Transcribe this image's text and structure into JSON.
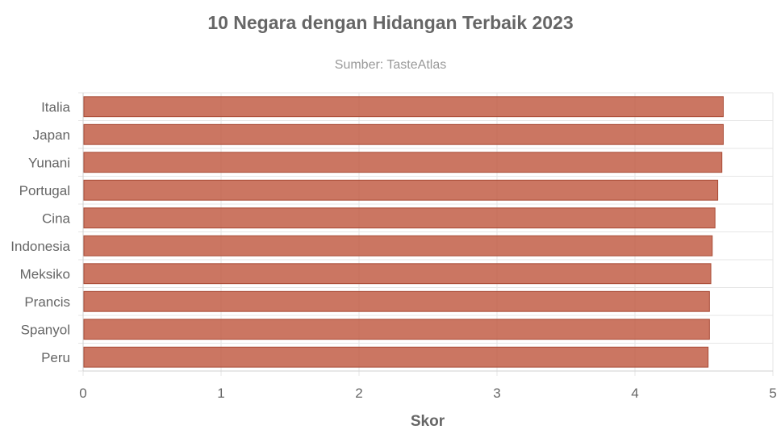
{
  "chart_data": {
    "type": "bar",
    "orientation": "horizontal",
    "title": "10 Negara dengan Hidangan Terbaik 2023",
    "subtitle": "Sumber: TasteAtlas",
    "xlabel": "Skor",
    "ylabel": "",
    "xlim": [
      0,
      5
    ],
    "x_ticks": [
      "0",
      "1",
      "2",
      "3",
      "4",
      "5"
    ],
    "grid": true,
    "legend": "none",
    "categories": [
      "Italia",
      "Japan",
      "Yunani",
      "Portugal",
      "Cina",
      "Indonesia",
      "Meksiko",
      "Prancis",
      "Spanyol",
      "Peru"
    ],
    "values": [
      4.64,
      4.64,
      4.63,
      4.6,
      4.58,
      4.56,
      4.55,
      4.54,
      4.54,
      4.53
    ],
    "bar_color": "#c0583f",
    "bar_border_color": "#a84a35"
  }
}
